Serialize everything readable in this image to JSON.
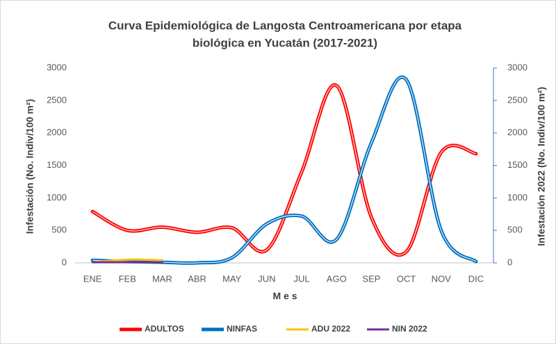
{
  "chart_data": {
    "type": "line",
    "title": [
      "Curva Epidemiológica  de Langosta Centroamericana por etapa",
      "biológica  en Yucatán (2017-2021)"
    ],
    "x_label": "M e s",
    "y_label": "Infestación (No. Indiv/100 m²)",
    "y2_label": "Infestación 2022 (No. Indiv/100 m²)",
    "categories": [
      "ENE",
      "FEB",
      "MAR",
      "ABR",
      "MAY",
      "JUN",
      "JUL",
      "AGO",
      "SEP",
      "OCT",
      "NOV",
      "DIC"
    ],
    "series": [
      {
        "name": "ADULTOS",
        "color": "#ff0000",
        "values": [
          790,
          500,
          550,
          470,
          540,
          200,
          1400,
          2730,
          700,
          170,
          1700,
          1680
        ]
      },
      {
        "name": "NINFAS",
        "color": "#0070c0",
        "values": [
          40,
          20,
          10,
          0,
          80,
          600,
          720,
          360,
          1850,
          2820,
          500,
          20
        ]
      },
      {
        "name": "ADU 2022",
        "color": "#ffc000",
        "axis": "y2",
        "values": [
          10,
          50,
          40,
          null,
          null,
          null,
          null,
          null,
          null,
          null,
          null,
          null
        ]
      },
      {
        "name": "NIN 2022",
        "color": "#7030a0",
        "axis": "y2",
        "values": [
          10,
          10,
          10,
          null,
          null,
          null,
          null,
          null,
          null,
          null,
          null,
          null
        ]
      }
    ],
    "ylim": [
      0,
      3000
    ],
    "yticks": [
      0,
      500,
      1000,
      1500,
      2000,
      2500,
      3000
    ],
    "y2lim": [
      0,
      3000
    ],
    "y2ticks": [
      0,
      500,
      1000,
      1500,
      2000,
      2500,
      3000
    ],
    "legend": "bottom",
    "smooth": true
  }
}
